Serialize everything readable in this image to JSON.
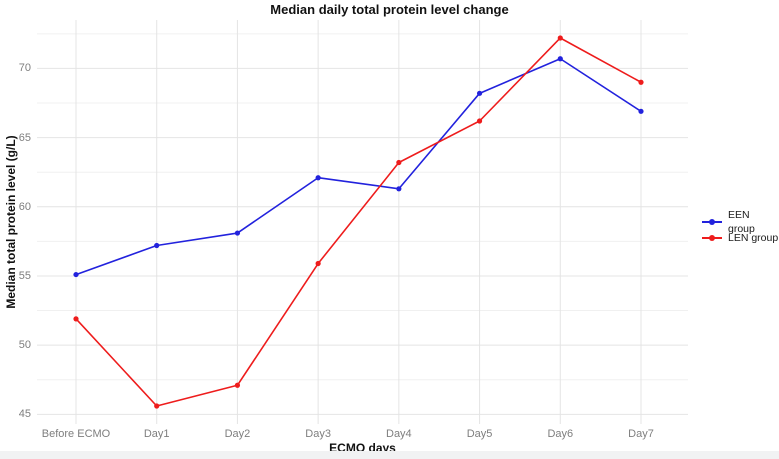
{
  "chart_data": {
    "type": "line",
    "title": "Median daily total protein level change",
    "xlabel": "ECMO days",
    "ylabel": "Median total protein level (g/L)",
    "categories": [
      "Before ECMO",
      "Day1",
      "Day2",
      "Day3",
      "Day4",
      "Day5",
      "Day6",
      "Day7"
    ],
    "series": [
      {
        "name": "EEN group",
        "color": "#2222dd",
        "values": [
          55.1,
          57.2,
          58.1,
          62.1,
          61.3,
          68.2,
          70.7,
          66.9
        ]
      },
      {
        "name": "LEN group",
        "color": "#ee1c1c",
        "values": [
          51.9,
          45.6,
          47.1,
          55.9,
          63.2,
          66.2,
          72.2,
          69.0
        ]
      }
    ],
    "ylim": [
      44.3,
      73.5
    ],
    "yticks": [
      45,
      50,
      55,
      60,
      65,
      70
    ],
    "yticks_minor": [
      47.5,
      52.5,
      57.5,
      62.5,
      67.5,
      72.5
    ],
    "grid": "on",
    "legend_position": "right",
    "grid_major_color": "#e4e4e4",
    "grid_minor_color": "#f0f0f0"
  }
}
